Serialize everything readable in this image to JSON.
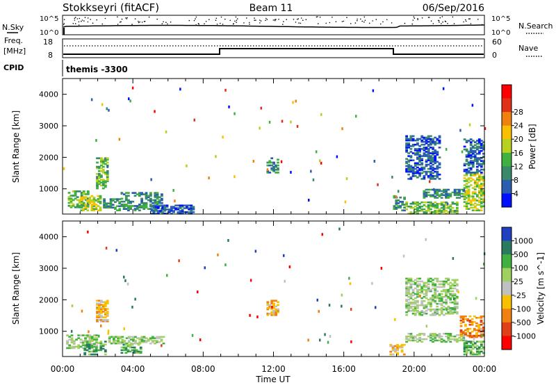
{
  "header": {
    "title": "Stokkseyri (fitACF)",
    "beam": "Beam 11",
    "date": "06/Sep/2016"
  },
  "top_panels": {
    "nsky_label": "N.Sky",
    "nsearch_label": "N.Search",
    "freq_label": "Freq.",
    "freq_unit": "[MHz]",
    "nave_label": "Nave",
    "cpid_label": "CPID",
    "cpid_value": "themis -3300",
    "nsky_ticks": [
      "10^5",
      "10^0"
    ],
    "nsearch_ticks": [
      "10^5",
      "10^0"
    ],
    "freq_ticks": [
      "18",
      "8"
    ],
    "nave_ticks": [
      "60",
      "0"
    ]
  },
  "chart_data": [
    {
      "type": "heatmap",
      "name": "power-panel",
      "ylabel": "Slant Range [km]",
      "xlabel": "Time UT",
      "xlim": [
        "00:00",
        "24:00"
      ],
      "ylim": [
        200,
        4500
      ],
      "x_ticks": [
        "00:00",
        "04:00",
        "08:00",
        "12:00",
        "16:00",
        "20:00",
        "00:00"
      ],
      "y_ticks": [
        1000,
        2000,
        3000,
        4000
      ],
      "colorbar": {
        "label": "Power [dB]",
        "ticks": [
          4,
          8,
          12,
          16,
          20,
          24,
          28
        ],
        "colors": [
          "#0010ff",
          "#2a5fb0",
          "#3a8a6a",
          "#40b040",
          "#b8d020",
          "#f8c000",
          "#f08010",
          "#e03018",
          "#ff0000"
        ]
      },
      "regions": [
        {
          "t0": 0.3,
          "t1": 1.5,
          "r0": 400,
          "r1": 950,
          "level": 16
        },
        {
          "t0": 1.0,
          "t1": 2.2,
          "r0": 300,
          "r1": 800,
          "level": 20
        },
        {
          "t0": 1.9,
          "t1": 2.6,
          "r0": 1000,
          "r1": 2000,
          "level": 14
        },
        {
          "t0": 2.3,
          "t1": 3.3,
          "r0": 300,
          "r1": 700,
          "level": 12
        },
        {
          "t0": 3.3,
          "t1": 5.7,
          "r0": 300,
          "r1": 900,
          "level": 10
        },
        {
          "t0": 5.0,
          "t1": 7.5,
          "r0": 200,
          "r1": 500,
          "level": 6
        },
        {
          "t0": 11.6,
          "t1": 12.3,
          "r0": 1500,
          "r1": 2000,
          "level": 10
        },
        {
          "t0": 18.8,
          "t1": 19.5,
          "r0": 300,
          "r1": 800,
          "level": 12
        },
        {
          "t0": 19.5,
          "t1": 22.5,
          "r0": 200,
          "r1": 600,
          "level": 14
        },
        {
          "t0": 19.5,
          "t1": 21.5,
          "r0": 1300,
          "r1": 2700,
          "level": 8
        },
        {
          "t0": 20.5,
          "t1": 23.0,
          "r0": 700,
          "r1": 1000,
          "level": 12
        },
        {
          "t0": 22.8,
          "t1": 24.0,
          "r0": 300,
          "r1": 1500,
          "level": 18
        },
        {
          "t0": 22.8,
          "t1": 24.0,
          "r0": 1500,
          "r1": 2600,
          "level": 8
        }
      ]
    },
    {
      "type": "heatmap",
      "name": "velocity-panel",
      "ylabel": "Slant Range [km]",
      "xlabel": "Time UT",
      "xlim": [
        "00:00",
        "24:00"
      ],
      "ylim": [
        200,
        4500
      ],
      "x_ticks": [
        "00:00",
        "04:00",
        "08:00",
        "12:00",
        "16:00",
        "20:00",
        "00:00"
      ],
      "y_ticks": [
        1000,
        2000,
        3000,
        4000
      ],
      "colorbar": {
        "label": "Velocity [m s^-1]",
        "ticks": [
          "1000",
          "500",
          "100",
          "25",
          "-25",
          "-100",
          "-500",
          "-1000"
        ],
        "colors": [
          "#2040c0",
          "#2a7a60",
          "#40b040",
          "#a0d060",
          "#c0c0c0",
          "#f8c000",
          "#f08010",
          "#e04018",
          "#ff0000"
        ]
      },
      "regions": [
        {
          "t0": 0.2,
          "t1": 2.0,
          "r0": 450,
          "r1": 900,
          "level": "25"
        },
        {
          "t0": 1.2,
          "t1": 2.5,
          "r0": 250,
          "r1": 700,
          "level": "100"
        },
        {
          "t0": 1.9,
          "t1": 2.6,
          "r0": 1300,
          "r1": 2000,
          "level": "-100"
        },
        {
          "t0": 2.6,
          "t1": 5.8,
          "r0": 600,
          "r1": 850,
          "level": "25"
        },
        {
          "t0": 3.3,
          "t1": 4.5,
          "r0": 300,
          "r1": 600,
          "level": "100"
        },
        {
          "t0": 11.6,
          "t1": 12.3,
          "r0": 1500,
          "r1": 2000,
          "level": "-100"
        },
        {
          "t0": 18.6,
          "t1": 19.5,
          "r0": 250,
          "r1": 600,
          "level": "-100"
        },
        {
          "t0": 19.5,
          "t1": 23.0,
          "r0": 650,
          "r1": 950,
          "level": "25"
        },
        {
          "t0": 19.5,
          "t1": 22.5,
          "r0": 1500,
          "r1": 2700,
          "level": "25"
        },
        {
          "t0": 22.6,
          "t1": 24.0,
          "r0": 800,
          "r1": 1500,
          "level": "-500"
        },
        {
          "t0": 22.8,
          "t1": 24.0,
          "r0": 250,
          "r1": 700,
          "level": "100"
        }
      ]
    }
  ]
}
